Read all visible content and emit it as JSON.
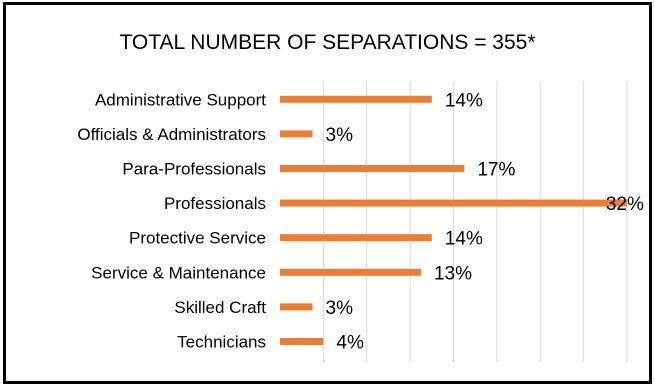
{
  "chart_data": {
    "type": "bar",
    "orientation": "horizontal",
    "title": "TOTAL NUMBER OF SEPARATIONS = 355*",
    "categories": [
      "Administrative Support",
      "Officials & Administrators",
      "Para-Professionals",
      "Professionals",
      "Protective Service",
      "Service & Maintenance",
      "Skilled Craft",
      "Technicians"
    ],
    "values": [
      14,
      3,
      17,
      32,
      14,
      13,
      3,
      4
    ],
    "value_labels": [
      "14%",
      "3%",
      "17%",
      "32%",
      "14%",
      "13%",
      "3%",
      "4%"
    ],
    "unit": "%",
    "xlim": [
      0,
      32
    ],
    "grid": true,
    "bar_color": "#ED7D31",
    "grid_color": "#D9D9D9"
  }
}
